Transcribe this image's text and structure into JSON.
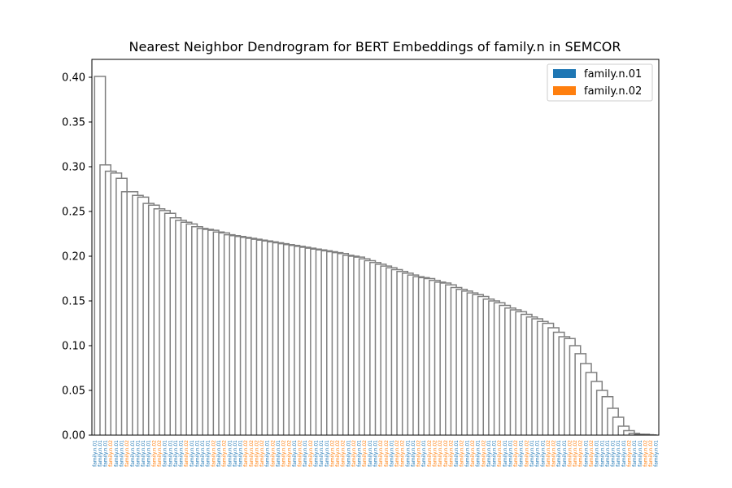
{
  "chart_data": {
    "type": "dendrogram",
    "title": "Nearest Neighbor Dendrogram for BERT Embeddings of family.n in SEMCOR",
    "xlabel": "",
    "ylabel": "",
    "ylim": [
      0,
      0.42
    ],
    "yticks": [
      0.0,
      0.05,
      0.1,
      0.15,
      0.2,
      0.25,
      0.3,
      0.35,
      0.4
    ],
    "ytick_labels": [
      "0.00",
      "0.05",
      "0.10",
      "0.15",
      "0.20",
      "0.25",
      "0.30",
      "0.35",
      "0.40"
    ],
    "grid": false,
    "legend_position": "top-right",
    "link_color": "#808080",
    "series": [
      {
        "name": "family.n.01",
        "color": "#1f77b4"
      },
      {
        "name": "family.n.02",
        "color": "#ff7f0e"
      }
    ],
    "leaf_senses": [
      1,
      1,
      1,
      2,
      1,
      1,
      2,
      1,
      1,
      1,
      1,
      2,
      2,
      1,
      1,
      1,
      1,
      2,
      1,
      1,
      1,
      1,
      2,
      1,
      2,
      1,
      1,
      1,
      2,
      2,
      2,
      2,
      1,
      2,
      1,
      2,
      2,
      1,
      2,
      1,
      2,
      1,
      1,
      1,
      2,
      2,
      2,
      1,
      2,
      1,
      2,
      1,
      1,
      2,
      2,
      1,
      2,
      2,
      1,
      1,
      2,
      1,
      2,
      2,
      2,
      2,
      2,
      1,
      2,
      1,
      2,
      1,
      2,
      1,
      1,
      2,
      1,
      1,
      2,
      1,
      2,
      1,
      1,
      1,
      2,
      2,
      1,
      1,
      2,
      2,
      2,
      1,
      2,
      1,
      1,
      1,
      1,
      1,
      1,
      2,
      1,
      1,
      2,
      2,
      1
    ],
    "merge_heights": [
      0.401,
      0.302,
      0.295,
      0.293,
      0.287,
      0.272,
      0.272,
      0.268,
      0.266,
      0.259,
      0.257,
      0.253,
      0.251,
      0.248,
      0.243,
      0.24,
      0.238,
      0.236,
      0.233,
      0.231,
      0.23,
      0.229,
      0.227,
      0.226,
      0.224,
      0.223,
      0.222,
      0.221,
      0.22,
      0.219,
      0.218,
      0.217,
      0.216,
      0.215,
      0.214,
      0.213,
      0.212,
      0.211,
      0.21,
      0.209,
      0.208,
      0.207,
      0.206,
      0.205,
      0.204,
      0.203,
      0.201,
      0.2,
      0.199,
      0.197,
      0.195,
      0.193,
      0.191,
      0.189,
      0.187,
      0.185,
      0.183,
      0.181,
      0.179,
      0.177,
      0.176,
      0.175,
      0.173,
      0.171,
      0.17,
      0.168,
      0.165,
      0.163,
      0.161,
      0.159,
      0.157,
      0.155,
      0.152,
      0.15,
      0.148,
      0.145,
      0.142,
      0.14,
      0.138,
      0.135,
      0.132,
      0.13,
      0.127,
      0.125,
      0.12,
      0.115,
      0.11,
      0.108,
      0.1,
      0.091,
      0.08,
      0.07,
      0.06,
      0.05,
      0.043,
      0.03,
      0.02,
      0.01,
      0.005,
      0.002,
      0.001,
      0.001,
      0.0005,
      0.0002
    ]
  }
}
